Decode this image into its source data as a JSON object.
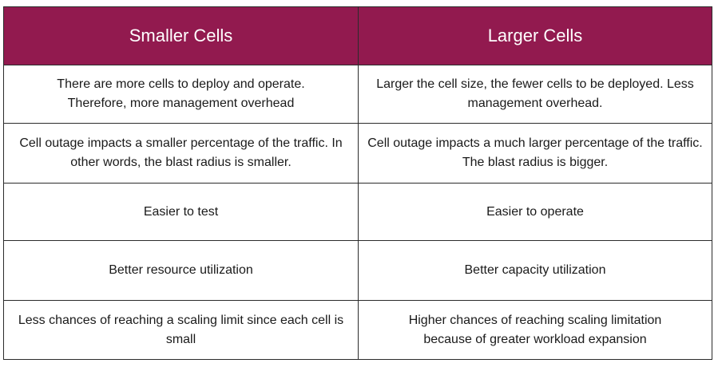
{
  "colors": {
    "header_background": "#921a4f",
    "header_text": "#ffffff",
    "border": "#2b2b2b"
  },
  "table": {
    "headers": [
      "Smaller Cells",
      "Larger Cells"
    ],
    "rows": [
      {
        "smaller": "There are more cells to deploy and operate. Therefore, more management overhead",
        "larger": "Larger the cell size, the fewer cells to be deployed. Less management overhead."
      },
      {
        "smaller": "Cell outage impacts a smaller percentage of the traffic. In other words, the blast radius is smaller.",
        "larger": "Cell outage impacts a much larger percentage of the traffic. The blast radius is bigger."
      },
      {
        "smaller": "Easier to test",
        "larger": "Easier to operate"
      },
      {
        "smaller": "Better resource utilization",
        "larger": "Better capacity utilization"
      },
      {
        "smaller": "Less chances of reaching a scaling limit since each cell is small",
        "larger": "Higher chances of reaching scaling limitation because of greater workload expansion"
      }
    ]
  }
}
